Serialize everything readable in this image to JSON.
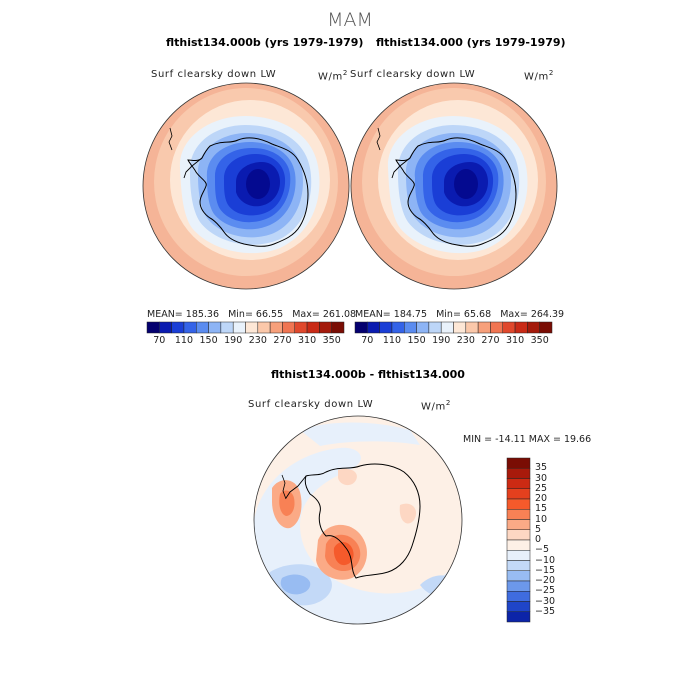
{
  "header": {
    "season": "MAM"
  },
  "panels": [
    {
      "title": "flthist134.000b (yrs 1979-1979)",
      "variable": "Surf clearsky down LW",
      "units": "W/m",
      "units_exp": "2",
      "stats": {
        "mean": "MEAN= 185.36",
        "min": "Min=   66.55",
        "max": "Max= 261.08"
      }
    },
    {
      "title": "flthist134.000 (yrs 1979-1979)",
      "variable": "Surf clearsky down LW",
      "units": "W/m",
      "units_exp": "2",
      "stats": {
        "mean": "MEAN= 184.75",
        "min": "Min=   65.68",
        "max": "Max= 264.39"
      }
    }
  ],
  "colorbar_top": {
    "ticks": [
      "70",
      "110",
      "150",
      "190",
      "230",
      "270",
      "310",
      "350"
    ],
    "colors": [
      "#04006f",
      "#0a1bb0",
      "#1a3ed6",
      "#3463e8",
      "#5b8cf0",
      "#8db4f5",
      "#bdd6f8",
      "#e9f2fb",
      "#fde7d6",
      "#fbc8aa",
      "#f7a07b",
      "#f07552",
      "#e0482c",
      "#c92a16",
      "#a41a0b",
      "#7a0d04"
    ]
  },
  "diff_panel": {
    "title": "flthist134.000b - flthist134.000",
    "variable": "Surf clearsky down LW",
    "units": "W/m",
    "units_exp": "2",
    "stats": "MIN = -14.11 MAX =  19.66"
  },
  "colorbar_diff": {
    "labels": [
      "35",
      "30",
      "25",
      "20",
      "15",
      "10",
      "5",
      "0",
      "−5",
      "−10",
      "−15",
      "−20",
      "−25",
      "−30",
      "−35"
    ],
    "colors": [
      "#7a0d04",
      "#a81a0b",
      "#cc2a13",
      "#e4401e",
      "#f55a2b",
      "#f88155",
      "#fbaa86",
      "#fdd7c3",
      "#fdf0e6",
      "#e7f0fb",
      "#c3d9f7",
      "#98bcf2",
      "#6c98ea",
      "#3f6cdf",
      "#1f45c8",
      "#0c24a8"
    ]
  },
  "colors": {
    "ocean_top": "#f9c9ad",
    "ocean_edge": "#f5b497",
    "antarctic_core": "#040a90",
    "diff_background": "#fbefe3"
  }
}
